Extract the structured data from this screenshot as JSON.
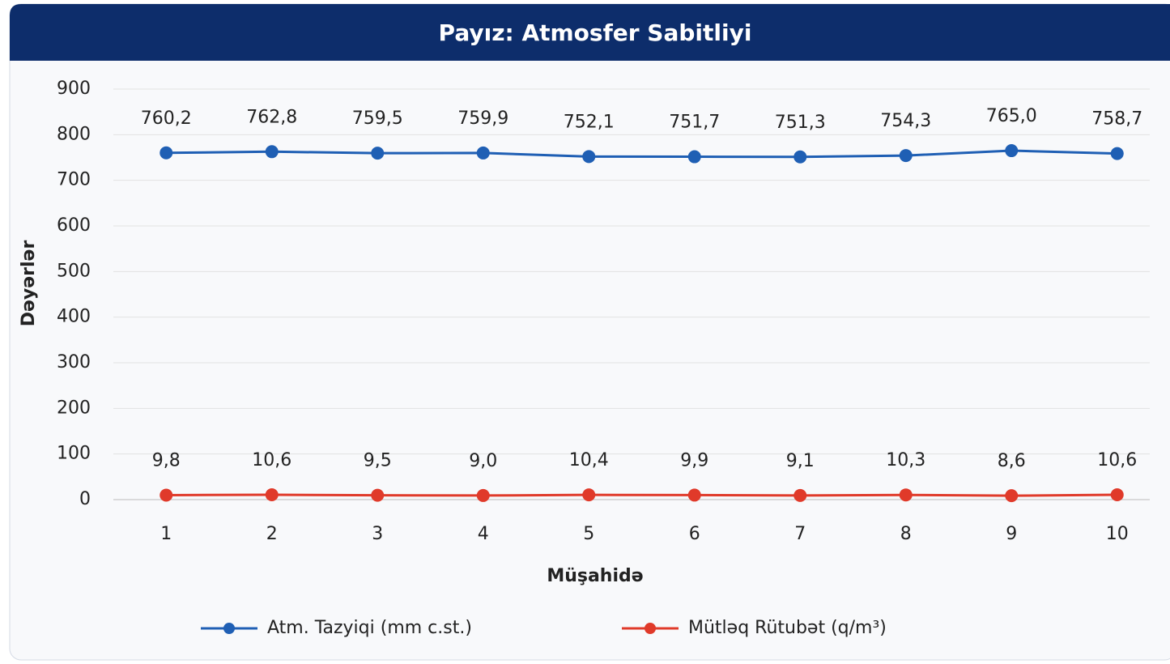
{
  "chart_data": {
    "type": "line",
    "title": "Payız: Atmosfer Sabitliyi",
    "xlabel": "Müşahidə",
    "ylabel": "Dəyərlər",
    "categories": [
      "1",
      "2",
      "3",
      "4",
      "5",
      "6",
      "7",
      "8",
      "9",
      "10"
    ],
    "series": [
      {
        "name": "Atm. Tazyiqi (mm c.st.)",
        "color": "#1f5fb4",
        "values": [
          760.2,
          762.8,
          759.5,
          759.9,
          752.1,
          751.7,
          751.3,
          754.3,
          765.0,
          758.7
        ],
        "value_labels": [
          "760,2",
          "762,8",
          "759,5",
          "759,9",
          "752,1",
          "751,7",
          "751,3",
          "754,3",
          "765,0",
          "758,7"
        ]
      },
      {
        "name": "Mütləq Rütubət (q/m³)",
        "color": "#e03a2a",
        "values": [
          9.8,
          10.6,
          9.5,
          9.0,
          10.4,
          9.9,
          9.1,
          10.3,
          8.6,
          10.6
        ],
        "value_labels": [
          "9,8",
          "10,6",
          "9,5",
          "9,0",
          "10,4",
          "9,9",
          "9,1",
          "10,3",
          "8,6",
          "10,6"
        ]
      }
    ],
    "ylim": [
      0,
      900
    ],
    "yticks": [
      0,
      100,
      200,
      300,
      400,
      500,
      600,
      700,
      800,
      900
    ],
    "grid": true,
    "legend": "bottom"
  }
}
